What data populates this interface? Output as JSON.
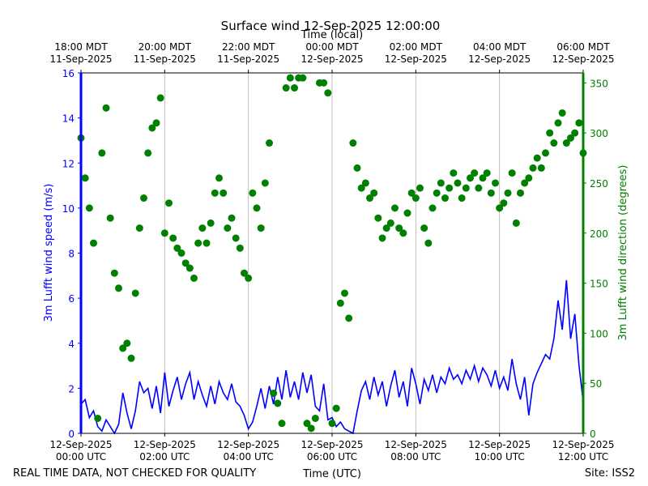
{
  "chart_data": {
    "type": "line",
    "title": "Surface wind 12-Sep-2025 12:00:00",
    "x2label": "Time (local)",
    "xlabel": "Time (UTC)",
    "ylabel": "3m Lufft wind speed (m/s)",
    "y2label": "3m Lufft wind direction (degrees)",
    "footnote_left": "REAL TIME DATA, NOT CHECKED FOR QUALITY",
    "footnote_right": "Site: ISS2",
    "grid": true,
    "xlim": [
      0,
      12
    ],
    "xticks": [
      {
        "value": 0,
        "label": [
          "12-Sep-2025",
          "00:00 UTC"
        ]
      },
      {
        "value": 2,
        "label": [
          "12-Sep-2025",
          "02:00 UTC"
        ]
      },
      {
        "value": 4,
        "label": [
          "12-Sep-2025",
          "04:00 UTC"
        ]
      },
      {
        "value": 6,
        "label": [
          "12-Sep-2025",
          "06:00 UTC"
        ]
      },
      {
        "value": 8,
        "label": [
          "12-Sep-2025",
          "08:00 UTC"
        ]
      },
      {
        "value": 10,
        "label": [
          "12-Sep-2025",
          "10:00 UTC"
        ]
      },
      {
        "value": 12,
        "label": [
          "12-Sep-2025",
          "12:00 UTC"
        ]
      }
    ],
    "x2ticks": [
      {
        "value": 0,
        "label": [
          "18:00 MDT",
          "11-Sep-2025"
        ]
      },
      {
        "value": 2,
        "label": [
          "20:00 MDT",
          "11-Sep-2025"
        ]
      },
      {
        "value": 4,
        "label": [
          "22:00 MDT",
          "11-Sep-2025"
        ]
      },
      {
        "value": 6,
        "label": [
          "00:00 MDT",
          "12-Sep-2025"
        ]
      },
      {
        "value": 8,
        "label": [
          "02:00 MDT",
          "12-Sep-2025"
        ]
      },
      {
        "value": 10,
        "label": [
          "04:00 MDT",
          "12-Sep-2025"
        ]
      },
      {
        "value": 12,
        "label": [
          "06:00 MDT",
          "12-Sep-2025"
        ]
      }
    ],
    "ylim": [
      0,
      16
    ],
    "yticks": [
      0,
      2,
      4,
      6,
      8,
      10,
      12,
      14,
      16
    ],
    "y2lim": [
      0,
      360
    ],
    "y2ticks": [
      0,
      50,
      100,
      150,
      200,
      250,
      300,
      350
    ],
    "x": [
      0,
      0.1,
      0.2,
      0.3,
      0.4,
      0.5,
      0.6,
      0.7,
      0.8,
      0.9,
      1,
      1.1,
      1.2,
      1.3,
      1.4,
      1.5,
      1.6,
      1.7,
      1.8,
      1.9,
      2,
      2.1,
      2.2,
      2.3,
      2.4,
      2.5,
      2.6,
      2.7,
      2.8,
      2.9,
      3,
      3.1,
      3.2,
      3.3,
      3.4,
      3.5,
      3.6,
      3.7,
      3.8,
      3.9,
      4,
      4.1,
      4.2,
      4.3,
      4.4,
      4.5,
      4.6,
      4.7,
      4.8,
      4.9,
      5,
      5.1,
      5.2,
      5.3,
      5.4,
      5.5,
      5.6,
      5.7,
      5.8,
      5.9,
      6,
      6.1,
      6.2,
      6.3,
      6.4,
      6.5,
      6.6,
      6.7,
      6.8,
      6.9,
      7,
      7.1,
      7.2,
      7.3,
      7.4,
      7.5,
      7.6,
      7.7,
      7.8,
      7.9,
      8,
      8.1,
      8.2,
      8.3,
      8.4,
      8.5,
      8.6,
      8.7,
      8.8,
      8.9,
      9,
      9.1,
      9.2,
      9.3,
      9.4,
      9.5,
      9.6,
      9.7,
      9.8,
      9.9,
      10,
      10.1,
      10.2,
      10.3,
      10.4,
      10.5,
      10.6,
      10.7,
      10.8,
      10.9,
      11,
      11.1,
      11.2,
      11.3,
      11.4,
      11.5,
      11.6,
      11.7,
      11.8,
      11.9,
      12
    ],
    "series": [
      {
        "type": "line",
        "color": "#0000ff",
        "values": [
          1.3,
          1.5,
          0.7,
          1.0,
          0.3,
          0.1,
          0.6,
          0.3,
          0.0,
          0.4,
          1.8,
          0.9,
          0.2,
          1.0,
          2.3,
          1.8,
          2.0,
          1.1,
          2.1,
          0.9,
          2.7,
          1.2,
          1.9,
          2.5,
          1.5,
          2.2,
          2.7,
          1.5,
          2.3,
          1.7,
          1.2,
          2.1,
          1.3,
          2.3,
          1.8,
          1.5,
          2.2,
          1.4,
          1.2,
          0.8,
          0.2,
          0.5,
          1.2,
          2.0,
          1.1,
          2.1,
          1.3,
          2.5,
          1.5,
          2.8,
          1.6,
          2.3,
          1.5,
          2.7,
          1.8,
          2.6,
          1.2,
          1.0,
          2.2,
          0.6,
          0.7,
          0.3,
          0.5,
          0.2,
          0.1,
          0.0,
          1.0,
          1.9,
          2.3,
          1.5,
          2.5,
          1.7,
          2.3,
          1.2,
          2.1,
          2.8,
          1.6,
          2.3,
          1.2,
          2.9,
          2.2,
          1.3,
          2.4,
          1.9,
          2.6,
          1.8,
          2.5,
          2.2,
          2.9,
          2.4,
          2.6,
          2.2,
          2.8,
          2.4,
          3.0,
          2.3,
          2.9,
          2.6,
          2.1,
          2.8,
          2.0,
          2.5,
          1.9,
          3.3,
          2.2,
          1.5,
          2.5,
          0.8,
          2.2,
          2.7,
          3.1,
          3.5,
          3.3,
          4.2,
          5.9,
          4.6,
          6.8,
          4.2,
          5.3,
          3.0,
          1.4
        ]
      },
      {
        "type": "scatter",
        "axis": "y2",
        "color": "#008000",
        "values": [
          295,
          255,
          225,
          190,
          15,
          280,
          325,
          215,
          160,
          145,
          85,
          90,
          75,
          140,
          205,
          235,
          280,
          305,
          310,
          335,
          200,
          230,
          195,
          185,
          180,
          170,
          165,
          155,
          190,
          205,
          190,
          210,
          240,
          255,
          240,
          205,
          215,
          195,
          185,
          160,
          155,
          240,
          225,
          205,
          250,
          290,
          40,
          30,
          10,
          345,
          355,
          345,
          355,
          355,
          10,
          5,
          15,
          350,
          350,
          340,
          10,
          25,
          130,
          140,
          115,
          290,
          265,
          245,
          250,
          235,
          240,
          215,
          195,
          205,
          210,
          225,
          205,
          200,
          220,
          240,
          235,
          245,
          205,
          190,
          225,
          240,
          250,
          235,
          245,
          260,
          250,
          235,
          245,
          255,
          260,
          245,
          255,
          260,
          240,
          250,
          225,
          230,
          240,
          260,
          210,
          240,
          250,
          255,
          265,
          275,
          265,
          280,
          300,
          290,
          310,
          320,
          290,
          295,
          300,
          310,
          280
        ]
      }
    ]
  }
}
